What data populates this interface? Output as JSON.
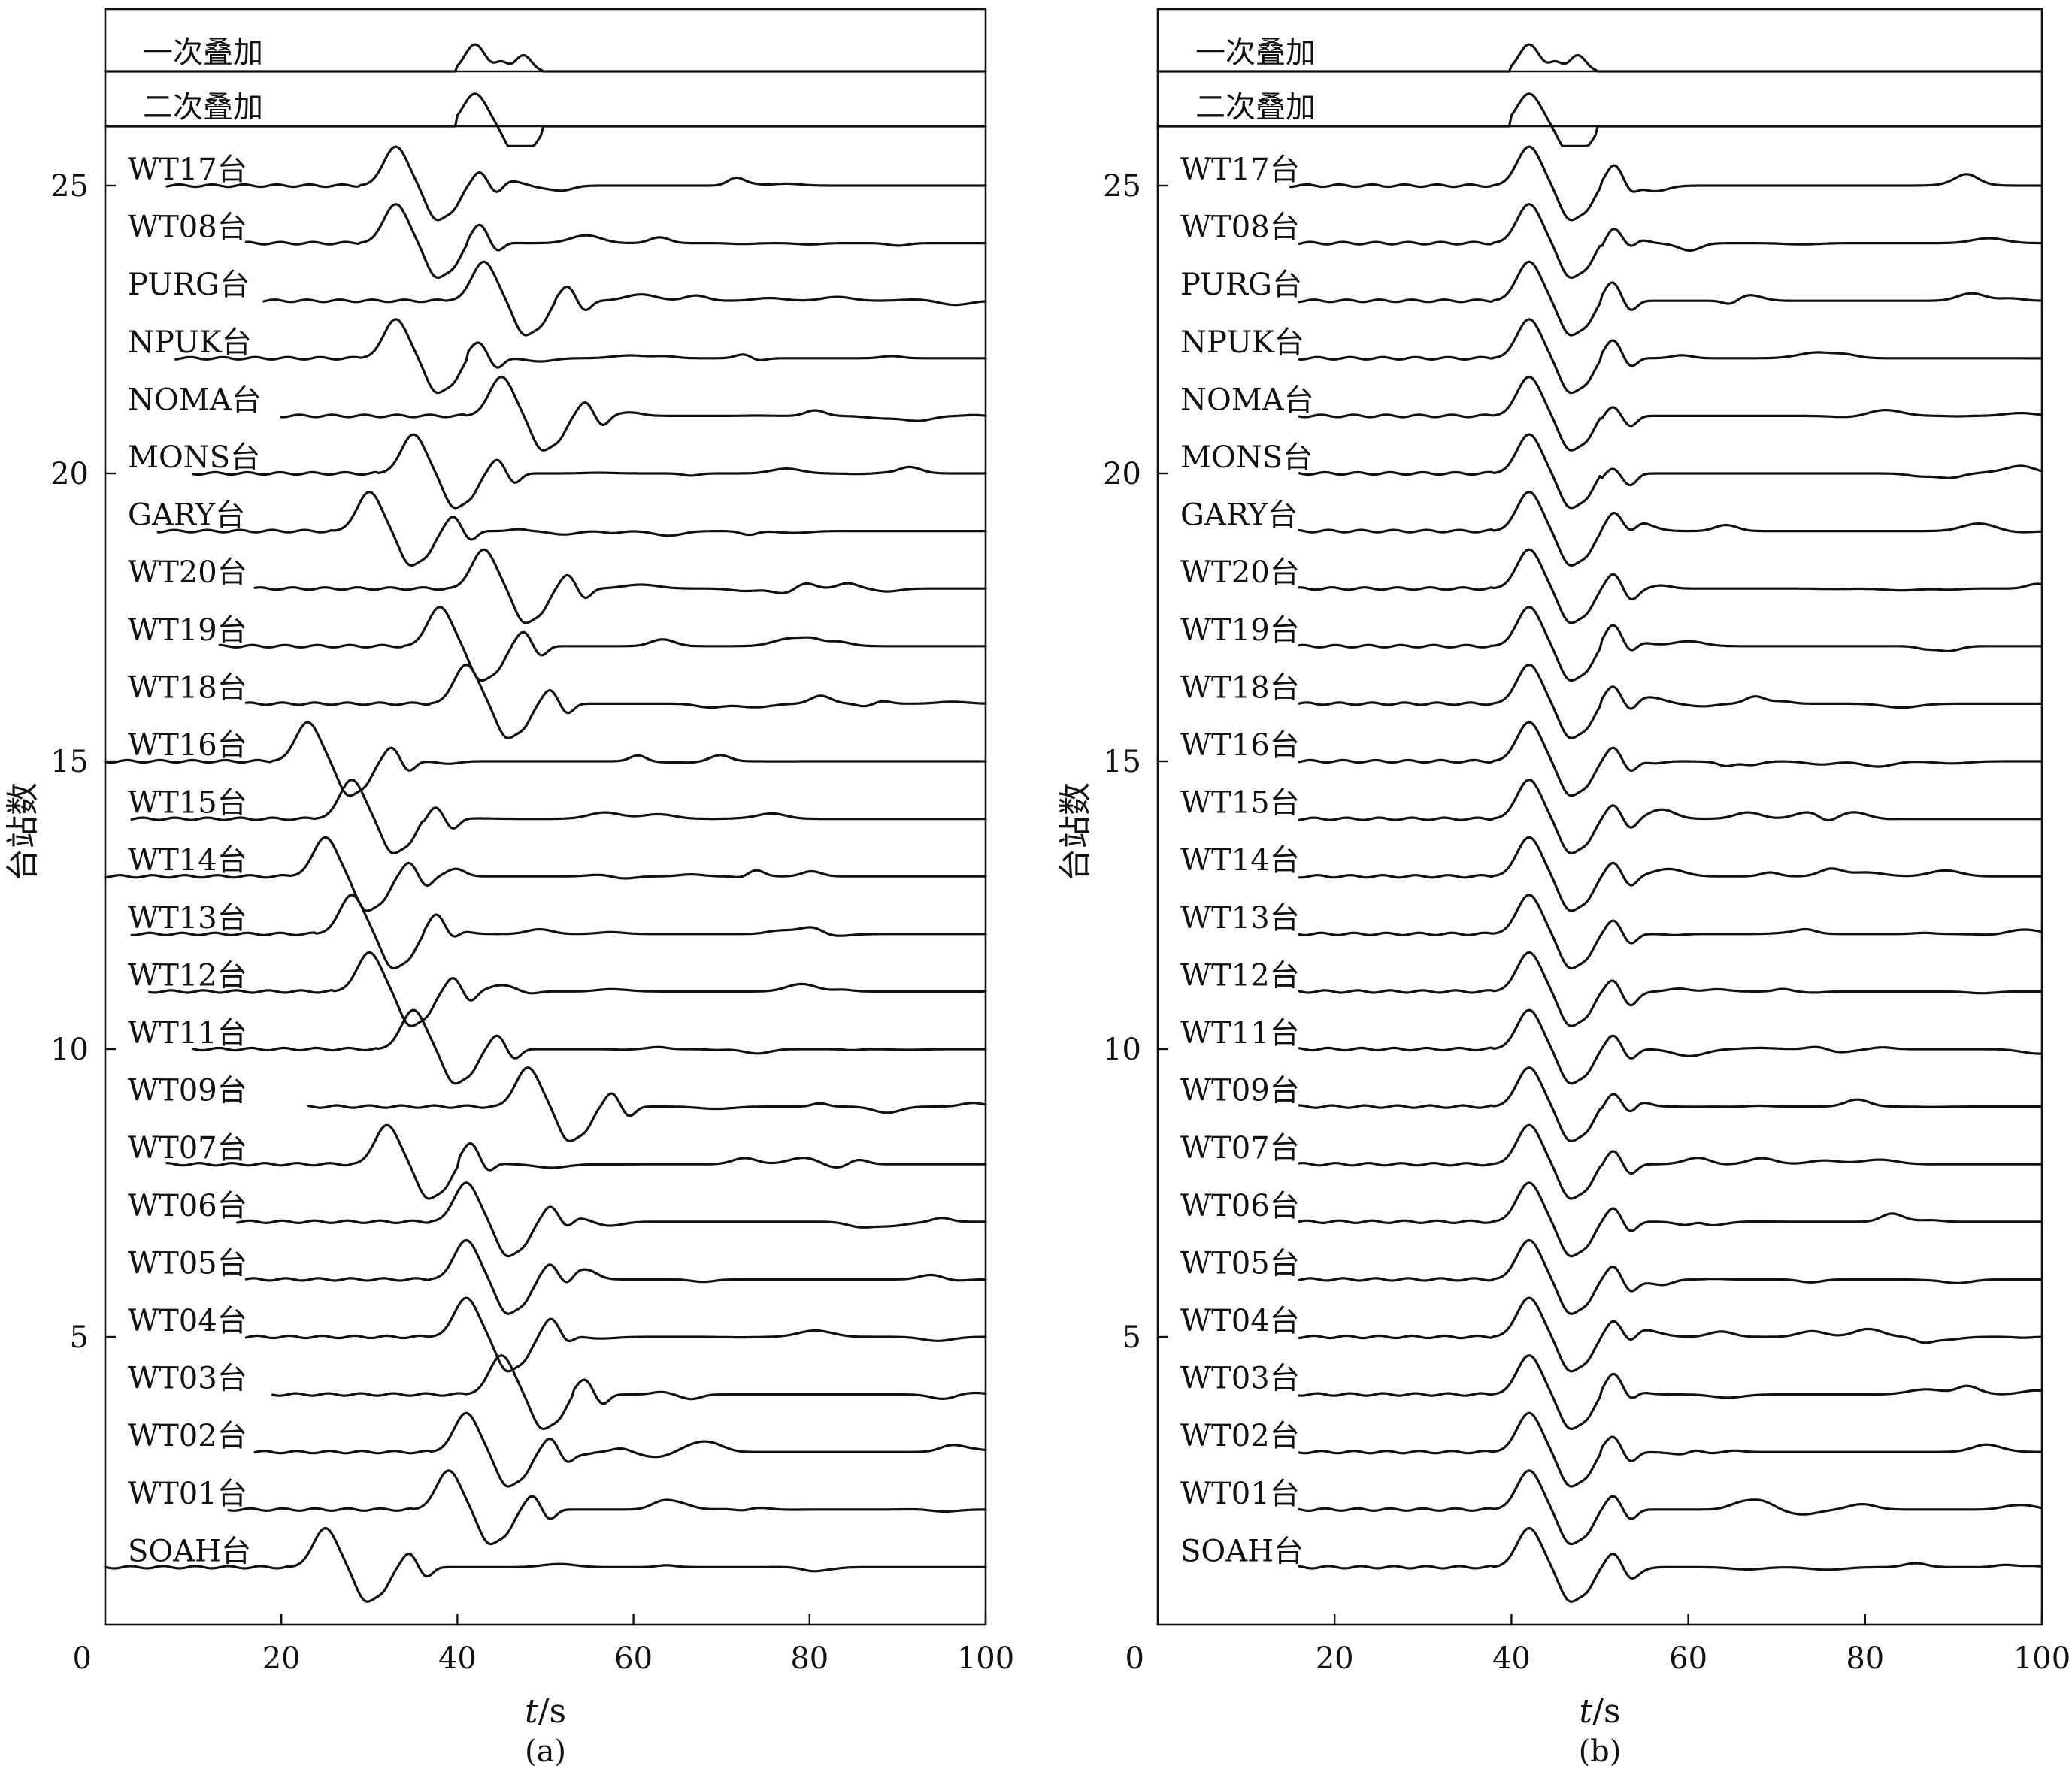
{
  "chart_data": [
    {
      "type": "line",
      "panel_label": "(a)",
      "xlabel": "t/s",
      "ylabel": "台站数",
      "xlim": [
        0,
        100
      ],
      "ylim": [
        0,
        28
      ],
      "xticks": [
        "0",
        "20",
        "40",
        "60",
        "80",
        "100"
      ],
      "yticks": [
        "5",
        "10",
        "15",
        "20",
        "25"
      ],
      "stack_labels": [
        "二次叠加",
        "一次叠加"
      ],
      "stations": [
        {
          "name": "WT17台",
          "y": 25,
          "start": 7,
          "peak": 33
        },
        {
          "name": "WT08台",
          "y": 24,
          "start": 16,
          "peak": 33
        },
        {
          "name": "PURG台",
          "y": 23,
          "start": 18,
          "peak": 43
        },
        {
          "name": "NPUK台",
          "y": 22,
          "start": 8,
          "peak": 33
        },
        {
          "name": "NOMA台",
          "y": 21,
          "start": 20,
          "peak": 45
        },
        {
          "name": "MONS台",
          "y": 20,
          "start": 10,
          "peak": 35
        },
        {
          "name": "GARY台",
          "y": 19,
          "start": 6,
          "peak": 30
        },
        {
          "name": "WT20台",
          "y": 18,
          "start": 17,
          "peak": 43
        },
        {
          "name": "WT19台",
          "y": 17,
          "start": 13,
          "peak": 38
        },
        {
          "name": "WT18台",
          "y": 16,
          "start": 16,
          "peak": 41
        },
        {
          "name": "WT16台",
          "y": 15,
          "start": 0,
          "peak": 23
        },
        {
          "name": "WT15台",
          "y": 14,
          "start": 3,
          "peak": 28
        },
        {
          "name": "WT14台",
          "y": 13,
          "start": 0,
          "peak": 25
        },
        {
          "name": "WT13台",
          "y": 12,
          "start": 3,
          "peak": 28
        },
        {
          "name": "WT12台",
          "y": 11,
          "start": 5,
          "peak": 30
        },
        {
          "name": "WT11台",
          "y": 10,
          "start": 10,
          "peak": 35
        },
        {
          "name": "WT09台",
          "y": 9,
          "start": 23,
          "peak": 48
        },
        {
          "name": "WT07台",
          "y": 8,
          "start": 7,
          "peak": 32
        },
        {
          "name": "WT06台",
          "y": 7,
          "start": 15,
          "peak": 41
        },
        {
          "name": "WT05台",
          "y": 6,
          "start": 16,
          "peak": 41
        },
        {
          "name": "WT04台",
          "y": 5,
          "start": 16,
          "peak": 41
        },
        {
          "name": "WT03台",
          "y": 4,
          "start": 19,
          "peak": 45
        },
        {
          "name": "WT02台",
          "y": 3,
          "start": 17,
          "peak": 41
        },
        {
          "name": "WT01台",
          "y": 2,
          "start": 14,
          "peak": 39
        },
        {
          "name": "SOAH台",
          "y": 1,
          "start": 0,
          "peak": 25
        }
      ]
    },
    {
      "type": "line",
      "panel_label": "(b)",
      "xlabel": "t/s",
      "ylabel": "台站数",
      "xlim": [
        0,
        100
      ],
      "ylim": [
        0,
        28
      ],
      "xticks": [
        "0",
        "20",
        "40",
        "60",
        "80",
        "100"
      ],
      "yticks": [
        "5",
        "10",
        "15",
        "20",
        "25"
      ],
      "stack_labels": [
        "二次叠加",
        "一次叠加"
      ],
      "aligned_peak": 42,
      "stations": [
        {
          "name": "WT17台",
          "y": 25,
          "start": 15
        },
        {
          "name": "WT08台",
          "y": 24,
          "start": 16
        },
        {
          "name": "PURG台",
          "y": 23,
          "start": 16
        },
        {
          "name": "NPUK台",
          "y": 22,
          "start": 16
        },
        {
          "name": "NOMA台",
          "y": 21,
          "start": 16
        },
        {
          "name": "MONS台",
          "y": 20,
          "start": 16
        },
        {
          "name": "GARY台",
          "y": 19,
          "start": 16
        },
        {
          "name": "WT20台",
          "y": 18,
          "start": 16
        },
        {
          "name": "WT19台",
          "y": 17,
          "start": 16
        },
        {
          "name": "WT18台",
          "y": 16,
          "start": 16
        },
        {
          "name": "WT16台",
          "y": 15,
          "start": 16
        },
        {
          "name": "WT15台",
          "y": 14,
          "start": 16
        },
        {
          "name": "WT14台",
          "y": 13,
          "start": 16
        },
        {
          "name": "WT13台",
          "y": 12,
          "start": 16
        },
        {
          "name": "WT12台",
          "y": 11,
          "start": 16
        },
        {
          "name": "WT11台",
          "y": 10,
          "start": 16
        },
        {
          "name": "WT09台",
          "y": 9,
          "start": 16
        },
        {
          "name": "WT07台",
          "y": 8,
          "start": 16
        },
        {
          "name": "WT06台",
          "y": 7,
          "start": 16
        },
        {
          "name": "WT05台",
          "y": 6,
          "start": 16
        },
        {
          "name": "WT04台",
          "y": 5,
          "start": 16
        },
        {
          "name": "WT03台",
          "y": 4,
          "start": 16
        },
        {
          "name": "WT02台",
          "y": 3,
          "start": 16
        },
        {
          "name": "WT01台",
          "y": 2,
          "start": 16
        },
        {
          "name": "SOAH台",
          "y": 1,
          "start": 16
        }
      ]
    }
  ]
}
